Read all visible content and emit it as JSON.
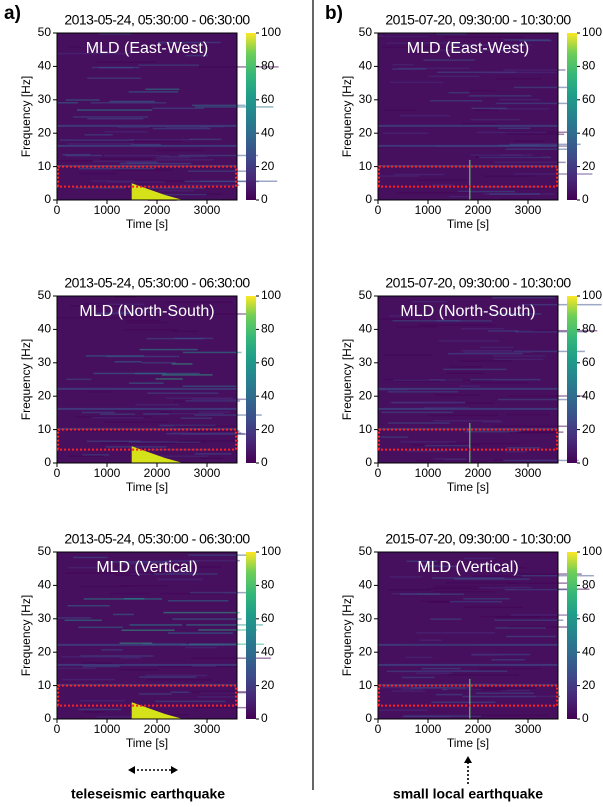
{
  "panels": [
    "a)",
    "b)"
  ],
  "captions": [
    "teleseismic earthquake",
    "small local earthquake"
  ],
  "chart_data": [
    {
      "type": "heatmap",
      "title": "2013-05-24, 05:30:00 - 06:30:00",
      "annotation": "MLD (East-West)",
      "xlabel": "Time [s]",
      "ylabel": "Frequency [Hz]",
      "xlim": [
        0,
        3600
      ],
      "xticks": [
        0,
        1000,
        2000,
        3000
      ],
      "ylim": [
        0,
        50
      ],
      "yticks": [
        0,
        10,
        20,
        30,
        40,
        50
      ],
      "clim": [
        0,
        100
      ],
      "cticks": [
        0,
        20,
        40,
        60,
        80,
        100
      ],
      "highlight": [
        4,
        10
      ]
    },
    {
      "type": "heatmap",
      "title": "2013-05-24, 05:30:00 - 06:30:00",
      "annotation": "MLD (North-South)",
      "xlabel": "Time [s]",
      "ylabel": "Frequency [Hz]",
      "xlim": [
        0,
        3600
      ],
      "xticks": [
        0,
        1000,
        2000,
        3000
      ],
      "ylim": [
        0,
        50
      ],
      "yticks": [
        0,
        10,
        20,
        30,
        40,
        50
      ],
      "clim": [
        0,
        100
      ],
      "cticks": [
        0,
        20,
        40,
        60,
        80,
        100
      ],
      "highlight": [
        4,
        10
      ]
    },
    {
      "type": "heatmap",
      "title": "2013-05-24, 05:30:00 - 06:30:00",
      "annotation": "MLD (Vertical)",
      "xlabel": "Time [s]",
      "ylabel": "Frequency [Hz]",
      "xlim": [
        0,
        3600
      ],
      "xticks": [
        0,
        1000,
        2000,
        3000
      ],
      "ylim": [
        0,
        50
      ],
      "yticks": [
        0,
        10,
        20,
        30,
        40,
        50
      ],
      "clim": [
        0,
        100
      ],
      "cticks": [
        0,
        20,
        40,
        60,
        80,
        100
      ],
      "highlight": [
        4,
        10
      ]
    },
    {
      "type": "heatmap",
      "title": "2015-07-20, 09:30:00 - 10:30:00",
      "annotation": "MLD (East-West)",
      "xlabel": "Time [s]",
      "ylabel": "Frequency [Hz]",
      "xlim": [
        0,
        3600
      ],
      "xticks": [
        0,
        1000,
        2000,
        3000
      ],
      "ylim": [
        0,
        50
      ],
      "yticks": [
        0,
        10,
        20,
        30,
        40,
        50
      ],
      "clim": [
        0,
        100
      ],
      "cticks": [
        0,
        20,
        40,
        60,
        80,
        100
      ],
      "highlight": [
        4,
        10
      ]
    },
    {
      "type": "heatmap",
      "title": "2015-07-20, 09:30:00 - 10:30:00",
      "annotation": "MLD (North-South)",
      "xlabel": "Time [s]",
      "ylabel": "Frequency [Hz]",
      "xlim": [
        0,
        3600
      ],
      "xticks": [
        0,
        1000,
        2000,
        3000
      ],
      "ylim": [
        0,
        50
      ],
      "yticks": [
        0,
        10,
        20,
        30,
        40,
        50
      ],
      "clim": [
        0,
        100
      ],
      "cticks": [
        0,
        20,
        40,
        60,
        80,
        100
      ],
      "highlight": [
        4,
        10
      ]
    },
    {
      "type": "heatmap",
      "title": "2015-07-20, 09:30:00 - 10:30:00",
      "annotation": "MLD (Vertical)",
      "xlabel": "Time [s]",
      "ylabel": "Frequency [Hz]",
      "xlim": [
        0,
        3600
      ],
      "xticks": [
        0,
        1000,
        2000,
        3000
      ],
      "ylim": [
        0,
        50
      ],
      "yticks": [
        0,
        10,
        20,
        30,
        40,
        50
      ],
      "clim": [
        0,
        100
      ],
      "cticks": [
        0,
        20,
        40,
        60,
        80,
        100
      ],
      "highlight": [
        4,
        10
      ]
    }
  ]
}
